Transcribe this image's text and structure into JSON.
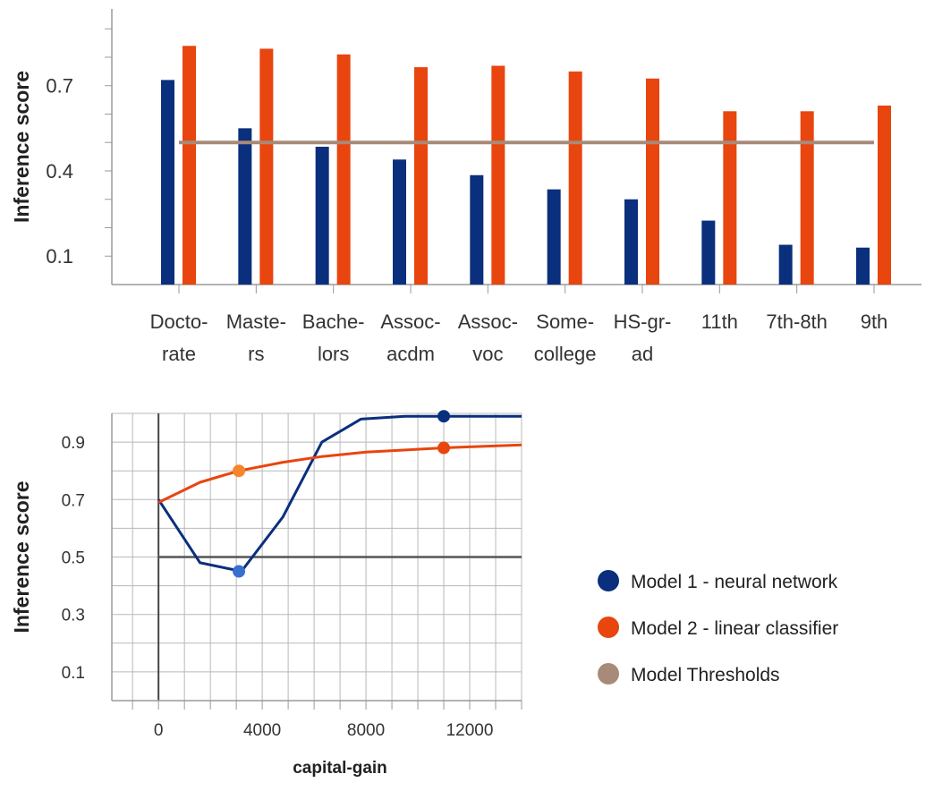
{
  "chart_data": [
    {
      "type": "bar",
      "title": "",
      "xlabel": "",
      "ylabel": "Inference score",
      "ylim": [
        0.0,
        0.97
      ],
      "yticks": [
        0.1,
        0.4,
        0.7
      ],
      "categories": [
        [
          "Docto-",
          "rate"
        ],
        [
          "Maste-",
          "rs"
        ],
        [
          "Bache-",
          "lors"
        ],
        [
          "Assoc-",
          "acdm"
        ],
        [
          "Assoc-",
          "voc"
        ],
        [
          "Some-",
          "college"
        ],
        [
          "HS-gr-",
          "ad"
        ],
        [
          "11th"
        ],
        [
          "7th-8th"
        ],
        [
          "9th"
        ]
      ],
      "series": [
        {
          "name": "Model 1 - neural network",
          "color": "#0a2f7c",
          "values": [
            0.72,
            0.55,
            0.485,
            0.44,
            0.385,
            0.335,
            0.3,
            0.225,
            0.14,
            0.13
          ]
        },
        {
          "name": "Model 2 - linear classifier",
          "color": "#e8450f",
          "values": [
            0.84,
            0.83,
            0.81,
            0.765,
            0.77,
            0.75,
            0.725,
            0.61,
            0.61,
            0.63
          ]
        }
      ],
      "threshold": {
        "name": "Model Thresholds",
        "color": "#a88a78",
        "value": 0.5
      },
      "grid": "horizontal"
    },
    {
      "type": "line",
      "title": "",
      "xlabel": "capital-gain",
      "ylabel": "Inference score",
      "xlim": [
        -1800,
        14000
      ],
      "ylim": [
        0.0,
        1.0
      ],
      "xticks": [
        0,
        4000,
        8000,
        12000
      ],
      "yticks": [
        0.1,
        0.3,
        0.5,
        0.7,
        0.9
      ],
      "series": [
        {
          "name": "Model 1 - neural network",
          "color": "#0a2f7c",
          "x": [
            0,
            1600,
            3200,
            4800,
            6300,
            7800,
            9500,
            11000,
            14000
          ],
          "y": [
            0.7,
            0.48,
            0.45,
            0.64,
            0.9,
            0.98,
            0.99,
            0.99,
            0.99
          ],
          "highlight_points": [
            {
              "x": 3100,
              "y": 0.45,
              "color": "#3a6fd0"
            },
            {
              "x": 11000,
              "y": 0.99,
              "color": "#0a2f7c"
            }
          ]
        },
        {
          "name": "Model 2 - linear classifier",
          "color": "#e8450f",
          "x": [
            0,
            1600,
            3100,
            4800,
            6300,
            8000,
            9600,
            11000,
            14000
          ],
          "y": [
            0.69,
            0.76,
            0.8,
            0.83,
            0.85,
            0.865,
            0.873,
            0.88,
            0.89
          ],
          "highlight_points": [
            {
              "x": 3100,
              "y": 0.8,
              "color": "#f5862a"
            },
            {
              "x": 11000,
              "y": 0.88,
              "color": "#e8450f"
            }
          ]
        }
      ],
      "threshold": {
        "name": "Model Thresholds",
        "color": "#555555",
        "value": 0.5
      },
      "grid": "both",
      "legend": {
        "position": "right",
        "items": [
          {
            "label": "Model 1 - neural network",
            "color": "#0a2f7c"
          },
          {
            "label": "Model 2 - linear classifier",
            "color": "#e8450f"
          },
          {
            "label": "Model Thresholds",
            "color": "#a88a78"
          }
        ]
      }
    }
  ]
}
